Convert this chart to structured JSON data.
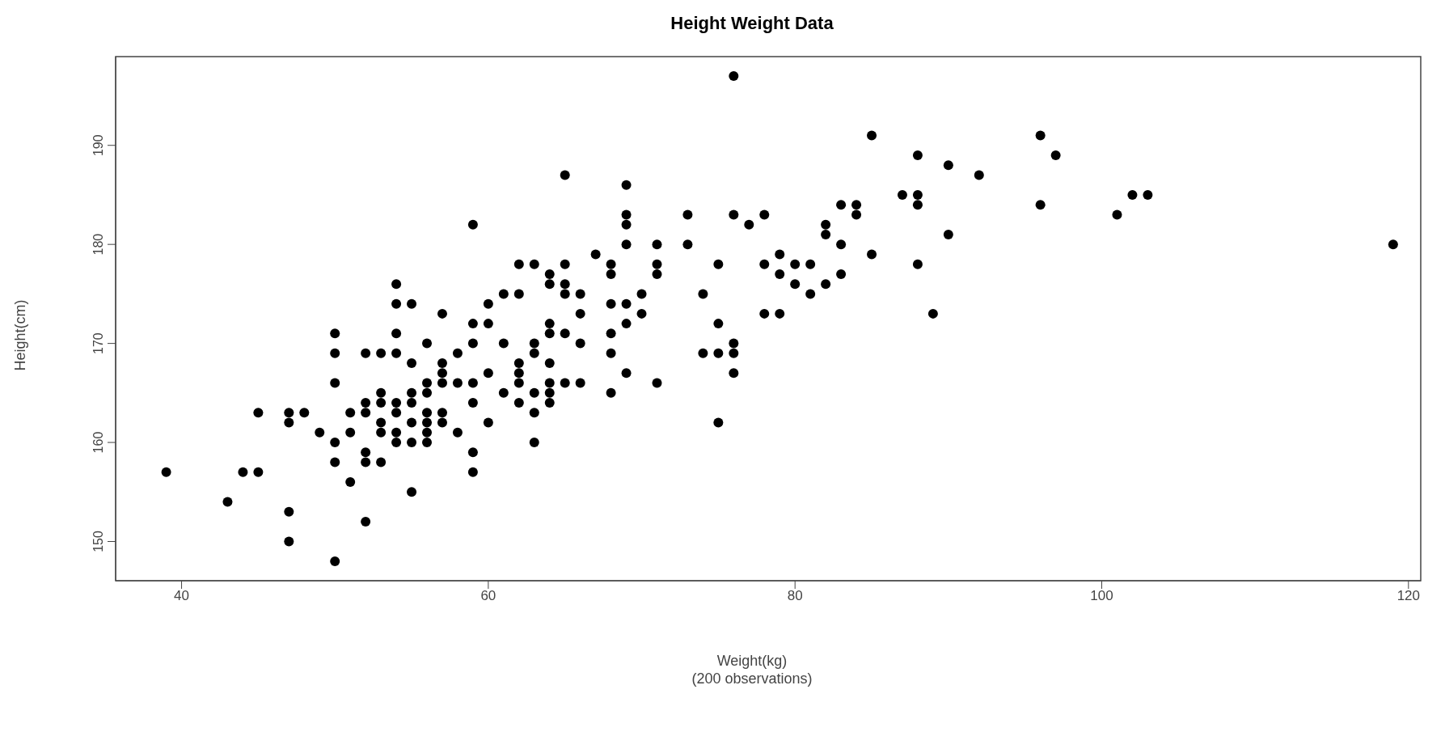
{
  "chart_data": {
    "type": "scatter",
    "title": "Height Weight Data",
    "xlabel": "Weight(kg)",
    "ylabel": "Height(cm)",
    "annotations": [
      "(200 observations)"
    ],
    "x": [
      39,
      43,
      44,
      45,
      45,
      47,
      47,
      47,
      47,
      48,
      49,
      50,
      50,
      50,
      50,
      50,
      50,
      51,
      51,
      51,
      52,
      52,
      52,
      52,
      52,
      52,
      53,
      53,
      53,
      53,
      53,
      53,
      54,
      54,
      54,
      54,
      54,
      54,
      54,
      54,
      55,
      55,
      55,
      55,
      55,
      55,
      55,
      56,
      56,
      56,
      56,
      56,
      56,
      56,
      57,
      57,
      57,
      57,
      57,
      57,
      58,
      58,
      58,
      59,
      59,
      59,
      59,
      59,
      59,
      59,
      60,
      60,
      60,
      60,
      61,
      61,
      61,
      62,
      62,
      62,
      62,
      62,
      62,
      63,
      63,
      63,
      63,
      63,
      63,
      64,
      64,
      64,
      64,
      64,
      64,
      64,
      64,
      65,
      65,
      65,
      65,
      65,
      65,
      66,
      66,
      66,
      66,
      67,
      68,
      68,
      68,
      68,
      68,
      68,
      69,
      69,
      69,
      69,
      69,
      69,
      69,
      70,
      70,
      71,
      71,
      71,
      71,
      73,
      73,
      74,
      74,
      75,
      75,
      75,
      75,
      76,
      76,
      76,
      76,
      76,
      77,
      78,
      78,
      78,
      79,
      79,
      79,
      80,
      80,
      81,
      81,
      82,
      82,
      82,
      83,
      83,
      83,
      84,
      84,
      85,
      85,
      87,
      88,
      88,
      88,
      88,
      89,
      90,
      90,
      92,
      96,
      96,
      97,
      101,
      102,
      103,
      119
    ],
    "series": [
      {
        "color": "#000000",
        "values": [
          157,
          154,
          157,
          163,
          157,
          163,
          162,
          153,
          150,
          163,
          161,
          171,
          169,
          166,
          160,
          158,
          148,
          163,
          161,
          156,
          169,
          164,
          163,
          159,
          158,
          152,
          169,
          165,
          164,
          162,
          161,
          158,
          176,
          174,
          171,
          169,
          164,
          163,
          161,
          160,
          174,
          168,
          165,
          164,
          162,
          160,
          155,
          170,
          166,
          165,
          163,
          162,
          161,
          160,
          173,
          168,
          167,
          166,
          163,
          162,
          169,
          166,
          161,
          182,
          172,
          170,
          166,
          164,
          159,
          157,
          174,
          172,
          167,
          162,
          175,
          170,
          165,
          178,
          175,
          168,
          167,
          166,
          164,
          178,
          170,
          169,
          165,
          163,
          160,
          177,
          176,
          172,
          171,
          168,
          166,
          165,
          164,
          187,
          178,
          176,
          175,
          171,
          166,
          175,
          173,
          170,
          166,
          179,
          178,
          177,
          174,
          171,
          169,
          165,
          186,
          183,
          182,
          180,
          174,
          172,
          167,
          175,
          173,
          180,
          178,
          177,
          166,
          183,
          180,
          175,
          169,
          178,
          172,
          169,
          162,
          197,
          183,
          170,
          169,
          167,
          182,
          183,
          178,
          173,
          179,
          177,
          173,
          178,
          176,
          178,
          175,
          182,
          181,
          176,
          184,
          180,
          177,
          184,
          183,
          191,
          179,
          185,
          189,
          185,
          184,
          178,
          173,
          188,
          181,
          187,
          191,
          184,
          189,
          183,
          185,
          185,
          180
        ]
      }
    ],
    "xlim": [
      35.7,
      120.8
    ],
    "ylim": [
      146.04,
      198.96
    ],
    "xticks": [
      40,
      60,
      80,
      100,
      120
    ],
    "yticks": [
      150,
      160,
      170,
      180,
      190
    ],
    "grid": false,
    "marker": "circle"
  }
}
